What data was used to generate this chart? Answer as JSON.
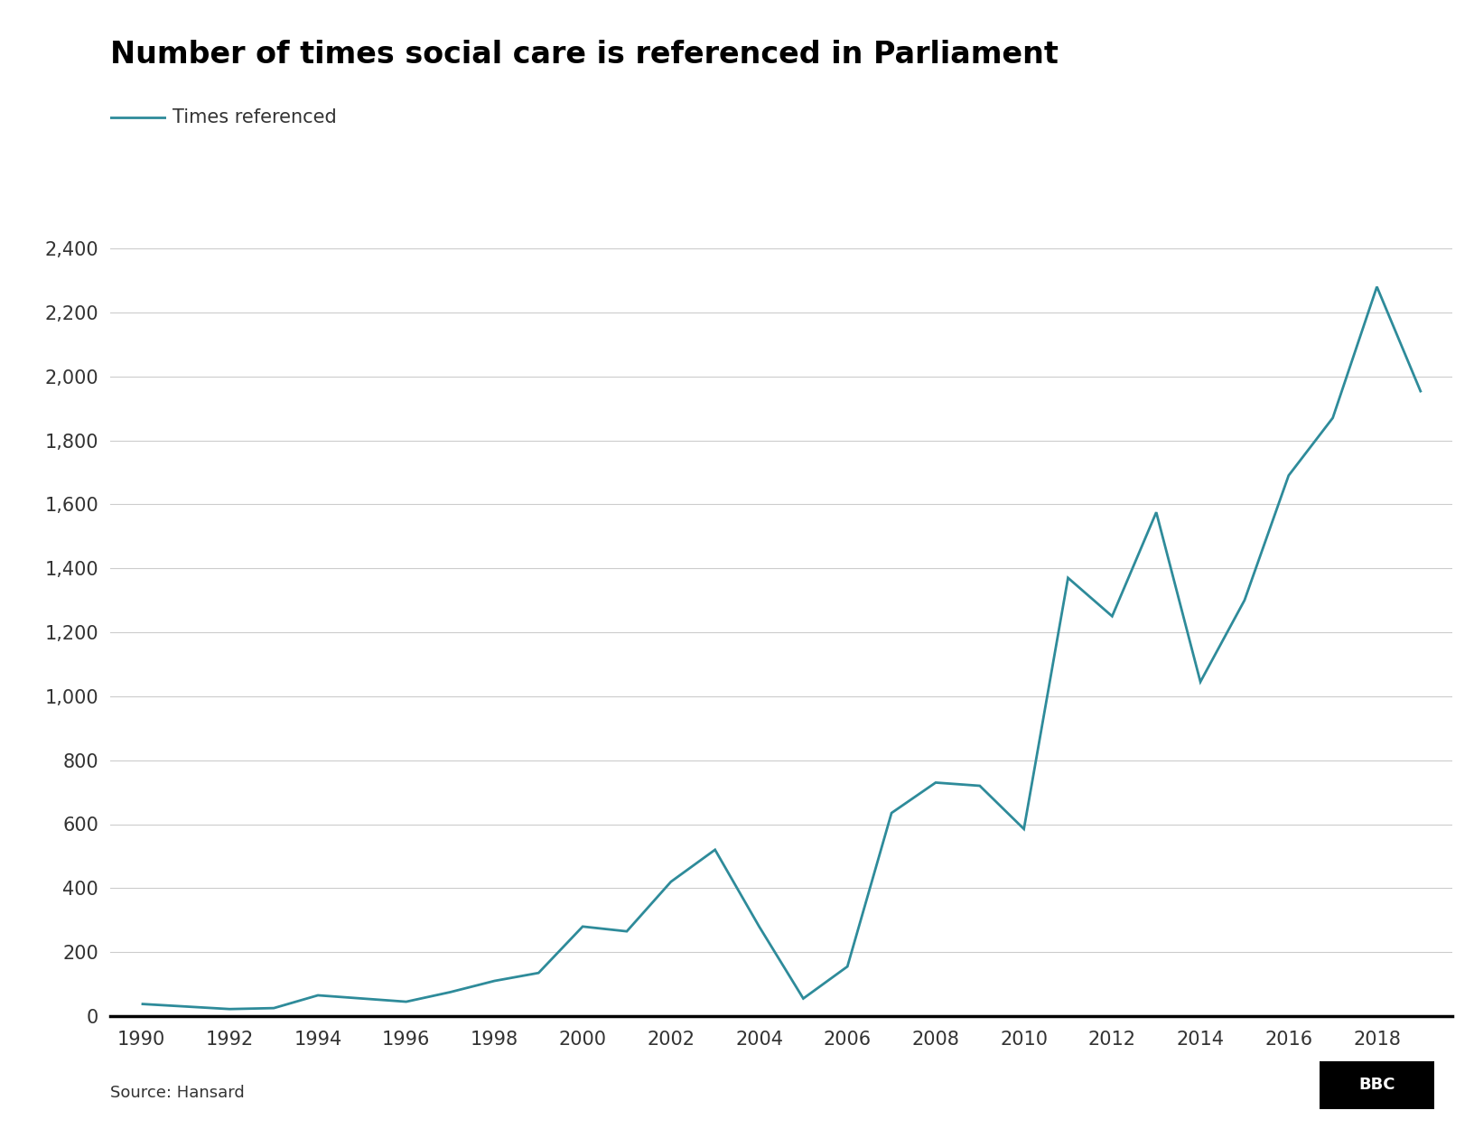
{
  "title": "Number of times social care is referenced in Parliament",
  "legend_label": "Times referenced",
  "source": "Source: Hansard",
  "line_color": "#2e8b9a",
  "background_color": "#ffffff",
  "grid_color": "#cccccc",
  "years": [
    1990,
    1991,
    1992,
    1993,
    1994,
    1995,
    1996,
    1997,
    1998,
    1999,
    2000,
    2001,
    2002,
    2003,
    2004,
    2005,
    2006,
    2007,
    2008,
    2009,
    2010,
    2011,
    2012,
    2013,
    2014,
    2015,
    2016,
    2017,
    2018,
    2019
  ],
  "values": [
    38,
    30,
    22,
    25,
    65,
    55,
    45,
    75,
    110,
    135,
    280,
    265,
    420,
    520,
    280,
    55,
    155,
    635,
    730,
    720,
    585,
    1370,
    1250,
    1575,
    1045,
    1300,
    1690,
    1870,
    2280,
    1950
  ],
  "ylim": [
    0,
    2400
  ],
  "yticks": [
    0,
    200,
    400,
    600,
    800,
    1000,
    1200,
    1400,
    1600,
    1800,
    2000,
    2200,
    2400
  ],
  "xticks": [
    1990,
    1992,
    1994,
    1996,
    1998,
    2000,
    2002,
    2004,
    2006,
    2008,
    2010,
    2012,
    2014,
    2016,
    2018
  ],
  "line_width": 2.0,
  "title_fontsize": 24,
  "tick_fontsize": 15,
  "legend_fontsize": 15,
  "source_fontsize": 13
}
